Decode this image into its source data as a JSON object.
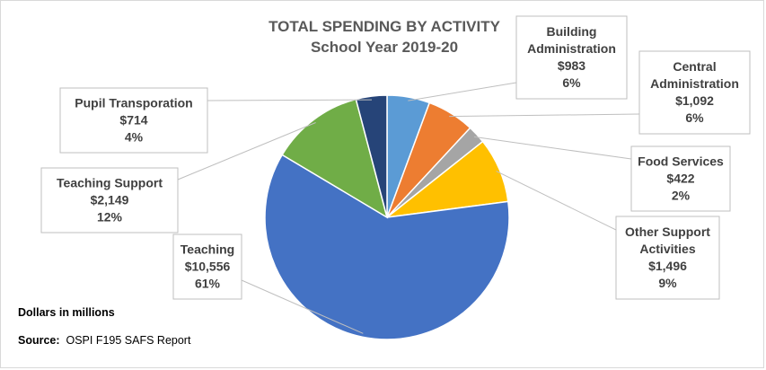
{
  "chart_data": {
    "type": "pie",
    "title": "TOTAL SPENDING BY ACTIVITY",
    "subtitle": "School Year 2019-20",
    "slices": [
      {
        "label": [
          "Building",
          "Administration"
        ],
        "value": 983,
        "value_text": "$983",
        "percent_text": "6%",
        "color": "#5B9BD5"
      },
      {
        "label": [
          "Central",
          "Administration"
        ],
        "value": 1092,
        "value_text": "$1,092",
        "percent_text": "6%",
        "color": "#ED7D31"
      },
      {
        "label": [
          "Food Services"
        ],
        "value": 422,
        "value_text": "$422",
        "percent_text": "2%",
        "color": "#A5A5A5"
      },
      {
        "label": [
          "Other Support",
          "Activities"
        ],
        "value": 1496,
        "value_text": "$1,496",
        "percent_text": "9%",
        "color": "#FFC000"
      },
      {
        "label": [
          "Teaching"
        ],
        "value": 10556,
        "value_text": "$10,556",
        "percent_text": "61%",
        "color": "#4472C4"
      },
      {
        "label": [
          "Teaching Support"
        ],
        "value": 2149,
        "value_text": "$2,149",
        "percent_text": "12%",
        "color": "#70AD47"
      },
      {
        "label": [
          "Pupil Transporation"
        ],
        "value": 714,
        "value_text": "$714",
        "percent_text": "4%",
        "color": "#264478"
      }
    ]
  },
  "notes": {
    "units": "Dollars in millions",
    "source_label": "Source:",
    "source_text": "OSPI F195 SAFS Report"
  }
}
